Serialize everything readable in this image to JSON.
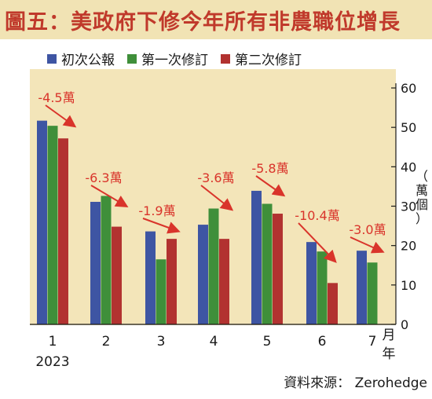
{
  "title": "圖五：美政府下修今年所有非農職位增長",
  "legend": [
    {
      "label": "初次公報",
      "color": "#3e55a3"
    },
    {
      "label": "第一次修訂",
      "color": "#3f8f3a"
    },
    {
      "label": "第二次修訂",
      "color": "#b23230"
    }
  ],
  "source": "資料來源： Zerohedge",
  "y_unit": "萬個",
  "x_unit_month": "月",
  "x_unit_year": "年",
  "colors": {
    "title": "#c0392b",
    "annotation": "#d9342b",
    "plot_bg": "#f3e5b9",
    "title_bg": "#f1e3b4"
  },
  "chart_data": {
    "type": "bar",
    "categories": [
      "1",
      "2",
      "3",
      "4",
      "5",
      "6",
      "7"
    ],
    "year_label": "2023",
    "series": [
      {
        "name": "初次公報",
        "values": [
          51.7,
          31.1,
          23.6,
          25.3,
          33.9,
          20.9,
          18.7
        ]
      },
      {
        "name": "第一次修訂",
        "values": [
          50.4,
          32.6,
          16.5,
          29.4,
          30.6,
          18.5,
          15.7
        ]
      },
      {
        "name": "第二次修訂",
        "values": [
          47.2,
          24.8,
          21.7,
          21.7,
          28.1,
          10.5,
          null
        ]
      }
    ],
    "annotations": [
      "-4.5萬",
      "-6.3萬",
      "-1.9萬",
      "-3.6萬",
      "-5.8萬",
      "-10.4萬",
      "-3.0萬"
    ],
    "yticks": [
      0,
      10,
      20,
      30,
      40,
      50,
      60
    ],
    "ylim": [
      0,
      60
    ],
    "ylabel": "萬個",
    "y_axis_side": "right",
    "grid": false
  }
}
